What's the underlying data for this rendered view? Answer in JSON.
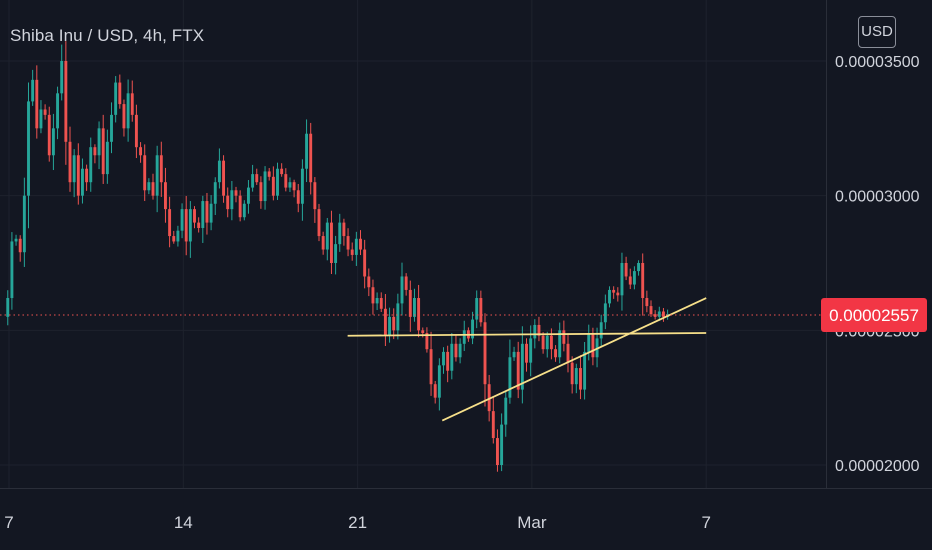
{
  "header": {
    "symbol_title": "Shiba Inu / USD, 4h, FTX",
    "currency_button": "USD"
  },
  "colors": {
    "background": "#131722",
    "up": "#26a69a",
    "down": "#ef5350",
    "grid": "#1e222d",
    "axis_text": "#d1d4dc",
    "trendline": "#f7e08a",
    "price_label_bg": "#f23645",
    "price_label_text": "#ffffff"
  },
  "chart_data": {
    "type": "candlestick",
    "title": "Shiba Inu / USD, 4h, FTX",
    "interval": "4h",
    "ylim": [
      1.87e-05,
      3.65e-05
    ],
    "y_ticks": [
      {
        "value": 3.5e-05,
        "label": "0.00003500"
      },
      {
        "value": 3e-05,
        "label": "0.00003000"
      },
      {
        "value": 2.5e-05,
        "label": "0.00002500"
      },
      {
        "value": 2e-05,
        "label": "0.00002000"
      }
    ],
    "x_range_days": [
      6.95,
      12.2
    ],
    "x_ticks": [
      {
        "day": 7,
        "label": "7"
      },
      {
        "day": 14,
        "label": "14"
      },
      {
        "day": 21,
        "label": "21"
      },
      {
        "day": 28,
        "label": "Mar"
      },
      {
        "day": 35,
        "label": "7"
      }
    ],
    "last_price": {
      "value": 2.557e-05,
      "label": "0.00002557"
    },
    "grid": true,
    "candles_per_day": 6,
    "closes": [
      2.62e-05,
      2.83e-05,
      2.84e-05,
      2.79e-05,
      3e-05,
      3.35e-05,
      3.43e-05,
      3.25e-05,
      3.32e-05,
      3.3e-05,
      3.15e-05,
      3.25e-05,
      3.38e-05,
      3.5e-05,
      3.2e-05,
      3.05e-05,
      3.15e-05,
      3e-05,
      3.1e-05,
      3.05e-05,
      3.18e-05,
      3.15e-05,
      3.25e-05,
      3.08e-05,
      3.2e-05,
      3.3e-05,
      3.42e-05,
      3.34e-05,
      3.25e-05,
      3.38e-05,
      3.3e-05,
      3.18e-05,
      3.15e-05,
      3.02e-05,
      3.05e-05,
      3e-05,
      3.15e-05,
      3.05e-05,
      2.95e-05,
      2.85e-05,
      2.83e-05,
      2.87e-05,
      2.95e-05,
      2.83e-05,
      2.95e-05,
      2.9e-05,
      2.88e-05,
      2.98e-05,
      2.9e-05,
      2.97e-05,
      3.05e-05,
      3.13e-05,
      3e-05,
      2.95e-05,
      3.02e-05,
      3e-05,
      2.92e-05,
      2.97e-05,
      3.03e-05,
      3.08e-05,
      3.05e-05,
      2.98e-05,
      3.09e-05,
      3.07e-05,
      3e-05,
      3.1e-05,
      3.08e-05,
      3.03e-05,
      3.05e-05,
      3.02e-05,
      2.97e-05,
      3.1e-05,
      3.23e-05,
      3.05e-05,
      2.95e-05,
      2.85e-05,
      2.8e-05,
      2.9e-05,
      2.75e-05,
      2.82e-05,
      2.9e-05,
      2.85e-05,
      2.8e-05,
      2.78e-05,
      2.84e-05,
      2.8e-05,
      2.7e-05,
      2.66e-05,
      2.6e-05,
      2.62e-05,
      2.58e-05,
      2.48e-05,
      2.55e-05,
      2.5e-05,
      2.6e-05,
      2.7e-05,
      2.65e-05,
      2.55e-05,
      2.62e-05,
      2.5e-05,
      2.49e-05,
      2.43e-05,
      2.3e-05,
      2.25e-05,
      2.37e-05,
      2.42e-05,
      2.35e-05,
      2.45e-05,
      2.4e-05,
      2.45e-05,
      2.5e-05,
      2.47e-05,
      2.54e-05,
      2.62e-05,
      2.53e-05,
      2.3e-05,
      2.2e-05,
      2.1e-05,
      2e-05,
      2.15e-05,
      2.25e-05,
      2.4e-05,
      2.42e-05,
      2.28e-05,
      2.45e-05,
      2.38e-05,
      2.47e-05,
      2.52e-05,
      2.48e-05,
      2.43e-05,
      2.48e-05,
      2.43e-05,
      2.4e-05,
      2.5e-05,
      2.45e-05,
      2.38e-05,
      2.3e-05,
      2.36e-05,
      2.28e-05,
      2.42e-05,
      2.49e-05,
      2.4e-05,
      2.47e-05,
      2.53e-05,
      2.6e-05,
      2.65e-05,
      2.64e-05,
      2.63e-05,
      2.75e-05,
      2.7e-05,
      2.67e-05,
      2.72e-05,
      2.75e-05,
      2.62e-05,
      2.59e-05,
      2.56e-05,
      2.55e-05,
      2.57e-05,
      2.55e-05,
      2.56e-05
    ],
    "annotations": [
      {
        "type": "horizontal_segment",
        "from": [
          20.6,
          2.48e-05
        ],
        "to": [
          35.0,
          2.49e-05
        ]
      },
      {
        "type": "trendline",
        "from": [
          24.4,
          2.165e-05
        ],
        "to": [
          35.0,
          2.62e-05
        ]
      }
    ]
  }
}
